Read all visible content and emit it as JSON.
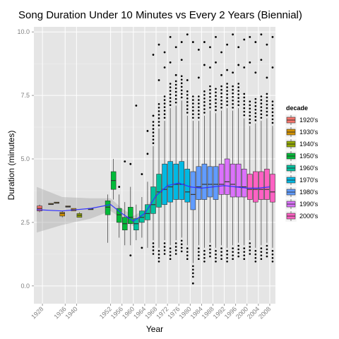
{
  "chart_data": {
    "type": "box",
    "title": "Song Duration Under 10 Minutes vs Every 2 Years (Biennial)",
    "xlabel": "Year",
    "ylabel": "Duration (minutes)",
    "xlim": [
      1925,
      2010
    ],
    "ylim": [
      -0.7,
      10.2
    ],
    "x_ticks": [
      1928,
      1936,
      1940,
      1952,
      1956,
      1960,
      1964,
      1968,
      1972,
      1976,
      1980,
      1984,
      1988,
      1992,
      1996,
      2000,
      2004,
      2008
    ],
    "y_ticks": [
      0.0,
      2.5,
      5.0,
      7.5,
      10.0
    ],
    "y_tick_labels": [
      "0.0",
      "2.5",
      "5.0",
      "7.5",
      "10.0"
    ],
    "grid": true,
    "legend": {
      "title": "decade",
      "position": "right",
      "items": [
        {
          "label": "1920's",
          "color": "#F8766D"
        },
        {
          "label": "1930's",
          "color": "#D39200"
        },
        {
          "label": "1940's",
          "color": "#93AA00"
        },
        {
          "label": "1950's",
          "color": "#00BA38"
        },
        {
          "label": "1960's",
          "color": "#00C19F"
        },
        {
          "label": "1970's",
          "color": "#00B9E3"
        },
        {
          "label": "1980's",
          "color": "#619CFF"
        },
        {
          "label": "1990's",
          "color": "#DB72FB"
        },
        {
          "label": "2000's",
          "color": "#FF61C3"
        }
      ]
    },
    "boxes": [
      {
        "year": 1927,
        "decade": "1920's",
        "q1": 2.95,
        "median": 3.05,
        "q3": 3.15,
        "lo": 2.9,
        "hi": 3.2,
        "outliers": []
      },
      {
        "year": 1931,
        "decade": "1930's",
        "q1": 3.2,
        "median": 3.22,
        "q3": 3.25,
        "lo": 3.2,
        "hi": 3.25,
        "outliers": []
      },
      {
        "year": 1933,
        "decade": "1930's",
        "q1": 3.25,
        "median": 3.27,
        "q3": 3.3,
        "lo": 3.25,
        "hi": 3.3,
        "outliers": []
      },
      {
        "year": 1935,
        "decade": "1930's",
        "q1": 2.75,
        "median": 2.85,
        "q3": 2.9,
        "lo": 2.7,
        "hi": 2.95,
        "outliers": []
      },
      {
        "year": 1937,
        "decade": "1930's",
        "q1": 3.1,
        "median": 3.12,
        "q3": 3.15,
        "lo": 3.1,
        "hi": 3.15,
        "outliers": []
      },
      {
        "year": 1939,
        "decade": "1930's",
        "q1": 2.95,
        "median": 3.0,
        "q3": 3.05,
        "lo": 2.95,
        "hi": 3.05,
        "outliers": []
      },
      {
        "year": 1941,
        "decade": "1940's",
        "q1": 2.7,
        "median": 2.78,
        "q3": 2.85,
        "lo": 2.7,
        "hi": 2.9,
        "outliers": []
      },
      {
        "year": 1945,
        "decade": "1940's",
        "q1": 3.0,
        "median": 3.02,
        "q3": 3.05,
        "lo": 3.0,
        "hi": 3.05,
        "outliers": []
      },
      {
        "year": 1951,
        "decade": "1950's",
        "q1": 2.8,
        "median": 3.1,
        "q3": 3.35,
        "lo": 1.7,
        "hi": 3.6,
        "outliers": []
      },
      {
        "year": 1953,
        "decade": "1950's",
        "q1": 3.8,
        "median": 4.15,
        "q3": 4.5,
        "lo": 3.4,
        "hi": 5.0,
        "outliers": []
      },
      {
        "year": 1955,
        "decade": "1950's",
        "q1": 2.5,
        "median": 2.8,
        "q3": 3.05,
        "lo": 1.9,
        "hi": 3.6,
        "outliers": [
          3.9
        ]
      },
      {
        "year": 1957,
        "decade": "1950's",
        "q1": 2.2,
        "median": 2.45,
        "q3": 2.7,
        "lo": 1.6,
        "hi": 3.3,
        "outliers": [
          4.9
        ]
      },
      {
        "year": 1959,
        "decade": "1950's",
        "q1": 2.45,
        "median": 2.7,
        "q3": 3.1,
        "lo": 1.6,
        "hi": 3.9,
        "outliers": [
          4.8,
          1.2
        ]
      },
      {
        "year": 1961,
        "decade": "1960's",
        "q1": 2.2,
        "median": 2.45,
        "q3": 2.65,
        "lo": 1.8,
        "hi": 3.2,
        "outliers": [
          7.1
        ]
      },
      {
        "year": 1963,
        "decade": "1960's",
        "q1": 2.5,
        "median": 2.7,
        "q3": 2.95,
        "lo": 1.9,
        "hi": 3.5,
        "outliers": [
          4.4,
          1.5
        ]
      },
      {
        "year": 1965,
        "decade": "1960's",
        "q1": 2.6,
        "median": 2.85,
        "q3": 3.2,
        "lo": 1.5,
        "hi": 4.1,
        "outliers": [
          5.2,
          6.1
        ]
      },
      {
        "year": 1967,
        "decade": "1960's",
        "q1": 2.85,
        "median": 3.2,
        "q3": 3.9,
        "lo": 1.8,
        "hi": 5.5,
        "outliers": [
          9.1,
          6.7
        ]
      },
      {
        "year": 1969,
        "decade": "1960's",
        "q1": 3.1,
        "median": 3.7,
        "q3": 4.4,
        "lo": 1.5,
        "hi": 6.2,
        "outliers": [
          9.5,
          8.1
        ]
      },
      {
        "year": 1971,
        "decade": "1970's",
        "q1": 3.2,
        "median": 3.8,
        "q3": 4.8,
        "lo": 1.8,
        "hi": 6.5,
        "outliers": [
          9.2,
          8.6
        ]
      },
      {
        "year": 1973,
        "decade": "1970's",
        "q1": 3.3,
        "median": 3.9,
        "q3": 4.9,
        "lo": 1.6,
        "hi": 7.0,
        "outliers": [
          9.8,
          8.8
        ]
      },
      {
        "year": 1975,
        "decade": "1970's",
        "q1": 3.4,
        "median": 4.0,
        "q3": 4.8,
        "lo": 1.8,
        "hi": 7.1,
        "outliers": [
          9.4,
          8.3
        ]
      },
      {
        "year": 1977,
        "decade": "1970's",
        "q1": 3.4,
        "median": 4.0,
        "q3": 4.9,
        "lo": 1.9,
        "hi": 7.3,
        "outliers": [
          9.6,
          8.9
        ]
      },
      {
        "year": 1979,
        "decade": "1970's",
        "q1": 3.3,
        "median": 3.7,
        "q3": 4.6,
        "lo": 1.6,
        "hi": 6.7,
        "outliers": [
          9.9,
          8.1
        ]
      },
      {
        "year": 1981,
        "decade": "1980's",
        "q1": 3.0,
        "median": 3.6,
        "q3": 4.5,
        "lo": 0.9,
        "hi": 6.5,
        "outliers": [
          9.6,
          0.1
        ]
      },
      {
        "year": 1983,
        "decade": "1980's",
        "q1": 3.4,
        "median": 3.9,
        "q3": 4.7,
        "lo": 1.6,
        "hi": 6.5,
        "outliers": [
          9.3,
          8.2
        ]
      },
      {
        "year": 1985,
        "decade": "1980's",
        "q1": 3.4,
        "median": 4.0,
        "q3": 4.8,
        "lo": 1.5,
        "hi": 6.7,
        "outliers": [
          9.6,
          8.7
        ]
      },
      {
        "year": 1987,
        "decade": "1980's",
        "q1": 3.5,
        "median": 4.0,
        "q3": 4.7,
        "lo": 1.7,
        "hi": 6.9,
        "outliers": [
          9.4,
          8.6
        ]
      },
      {
        "year": 1989,
        "decade": "1980's",
        "q1": 3.4,
        "median": 4.0,
        "q3": 4.7,
        "lo": 1.5,
        "hi": 6.8,
        "outliers": [
          9.8,
          8.8
        ]
      },
      {
        "year": 1991,
        "decade": "1990's",
        "q1": 3.6,
        "median": 4.0,
        "q3": 4.8,
        "lo": 1.6,
        "hi": 6.9,
        "outliers": [
          9.2,
          8.3
        ]
      },
      {
        "year": 1993,
        "decade": "1990's",
        "q1": 3.6,
        "median": 4.1,
        "q3": 5.0,
        "lo": 1.5,
        "hi": 7.0,
        "outliers": [
          9.5,
          8.5
        ]
      },
      {
        "year": 1995,
        "decade": "1990's",
        "q1": 3.5,
        "median": 4.0,
        "q3": 4.8,
        "lo": 1.6,
        "hi": 6.9,
        "outliers": [
          9.9,
          8.4
        ]
      },
      {
        "year": 1997,
        "decade": "1990's",
        "q1": 3.5,
        "median": 3.9,
        "q3": 4.8,
        "lo": 1.7,
        "hi": 7.0,
        "outliers": [
          9.4,
          8.7
        ]
      },
      {
        "year": 1999,
        "decade": "1990's",
        "q1": 3.5,
        "median": 3.9,
        "q3": 4.6,
        "lo": 1.6,
        "hi": 6.6,
        "outliers": [
          9.7,
          8.6
        ]
      },
      {
        "year": 2001,
        "decade": "2000's",
        "q1": 3.4,
        "median": 3.8,
        "q3": 4.4,
        "lo": 1.8,
        "hi": 6.3,
        "outliers": [
          9.8,
          8.8
        ]
      },
      {
        "year": 2003,
        "decade": "2000's",
        "q1": 3.3,
        "median": 3.8,
        "q3": 4.5,
        "lo": 1.5,
        "hi": 6.4,
        "outliers": [
          9.6,
          8.4
        ]
      },
      {
        "year": 2005,
        "decade": "2000's",
        "q1": 3.4,
        "median": 3.8,
        "q3": 4.5,
        "lo": 1.6,
        "hi": 6.5,
        "outliers": [
          9.9,
          8.9
        ]
      },
      {
        "year": 2007,
        "decade": "2000's",
        "q1": 3.4,
        "median": 3.8,
        "q3": 4.6,
        "lo": 1.7,
        "hi": 6.6,
        "outliers": [
          9.5,
          8.2
        ]
      },
      {
        "year": 2009,
        "decade": "2000's",
        "q1": 3.3,
        "median": 3.7,
        "q3": 4.4,
        "lo": 1.5,
        "hi": 6.3,
        "outliers": [
          9.8,
          8.6
        ]
      }
    ],
    "smooth": {
      "x": [
        1926,
        1935,
        1945,
        1952,
        1956,
        1960,
        1964,
        1968,
        1972,
        1976,
        1980,
        1984,
        1988,
        1992,
        1996,
        2000,
        2004,
        2008
      ],
      "y": [
        3.0,
        2.95,
        3.05,
        3.2,
        2.85,
        2.55,
        2.85,
        3.55,
        3.95,
        4.05,
        3.9,
        3.85,
        3.9,
        3.95,
        3.9,
        3.85,
        3.85,
        3.9
      ],
      "band": [
        0.9,
        0.55,
        0.4,
        0.25,
        0.2,
        0.2,
        0.15,
        0.1,
        0.08,
        0.07,
        0.06,
        0.05,
        0.05,
        0.05,
        0.05,
        0.05,
        0.06,
        0.08
      ],
      "color": "#3333FF"
    }
  }
}
